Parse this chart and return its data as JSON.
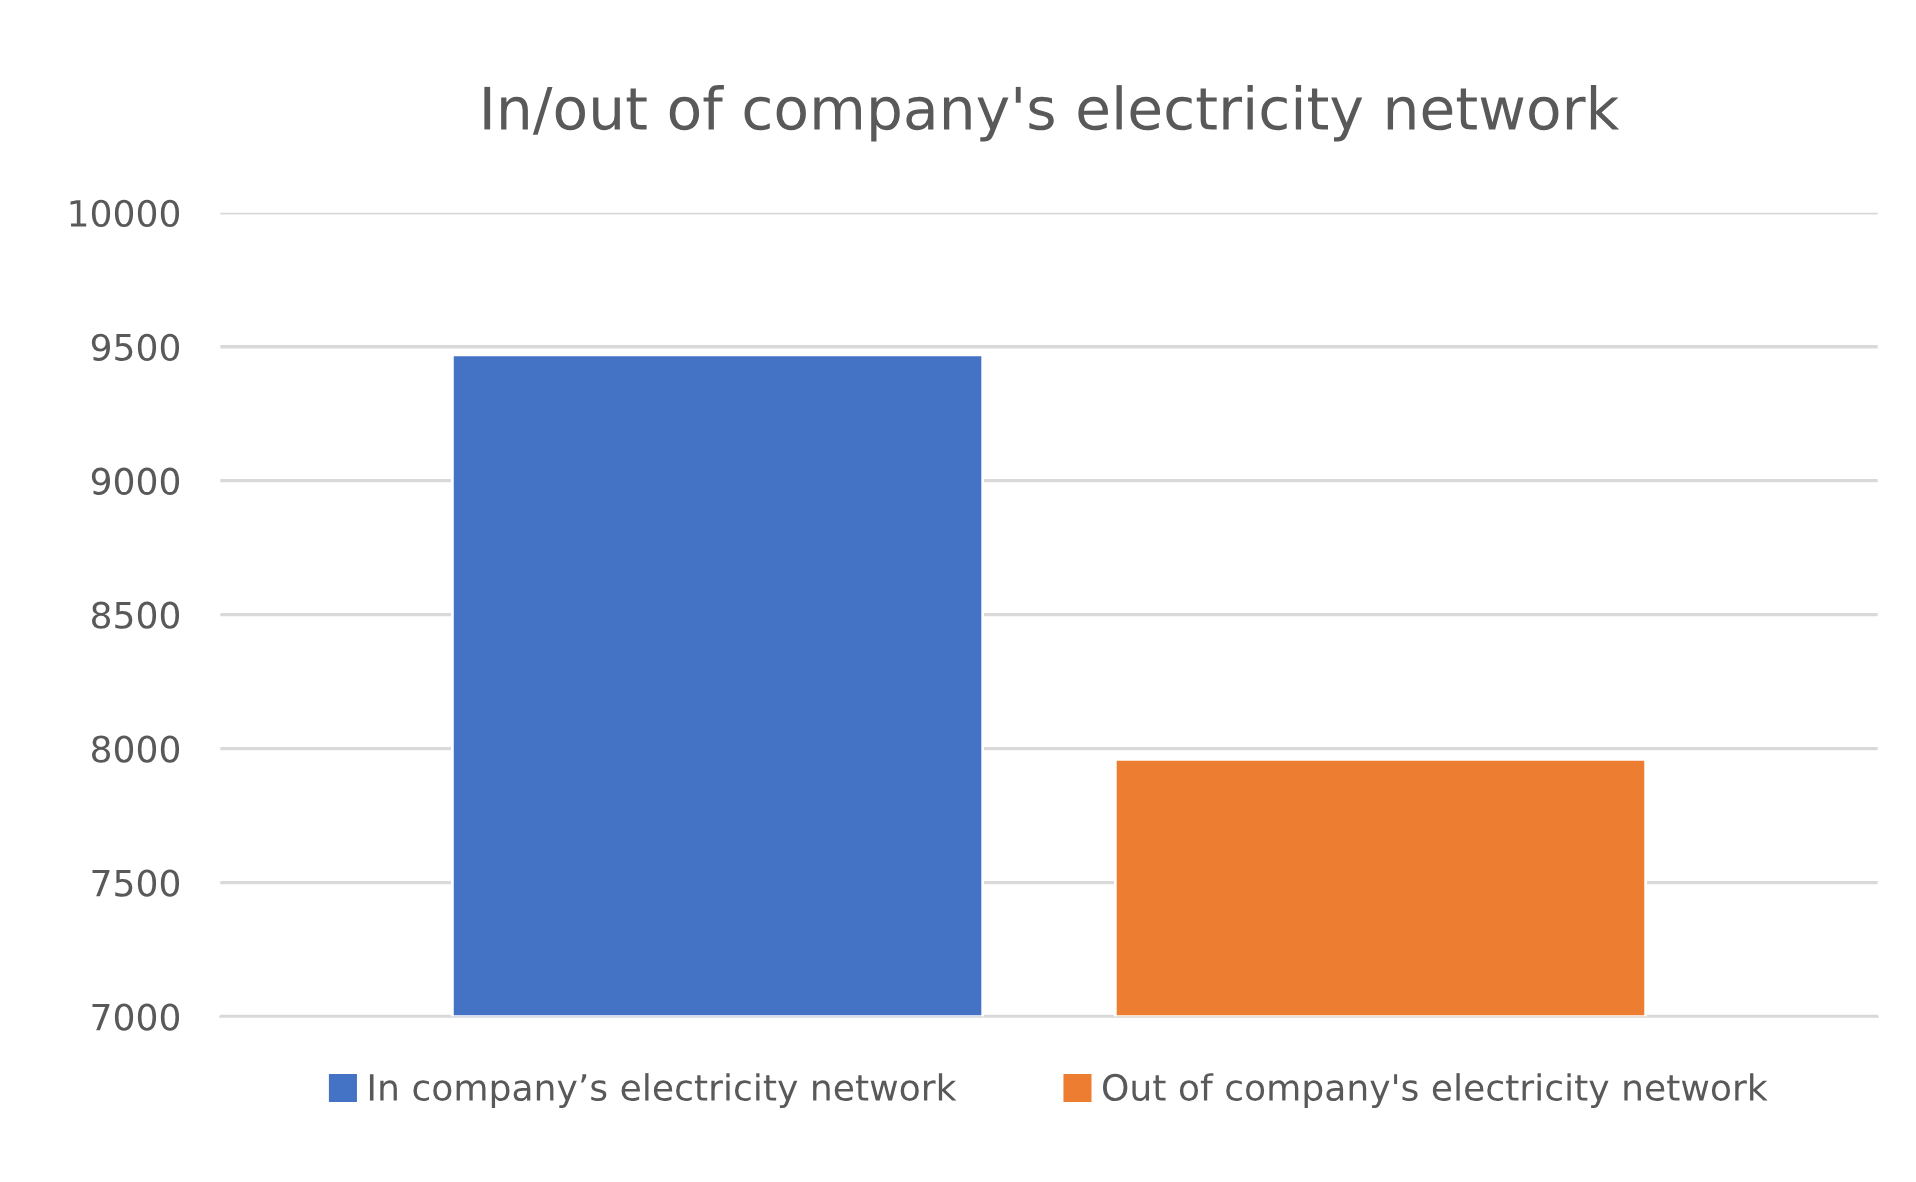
{
  "chart_data": {
    "type": "bar",
    "title": "In/out of company's electricity network",
    "categories": [
      null
    ],
    "series": [
      {
        "name": "In company’s electricity network",
        "color": "#4472c4",
        "values": [
          9470
        ]
      },
      {
        "name": "Out of company's electricity network",
        "color": "#ed7d31",
        "values": [
          7960
        ]
      }
    ],
    "ylim": [
      7000,
      10000
    ],
    "yticks": [
      7000,
      7500,
      8000,
      8500,
      9000,
      9500,
      10000
    ],
    "grid": "y",
    "legend": "bottom"
  }
}
